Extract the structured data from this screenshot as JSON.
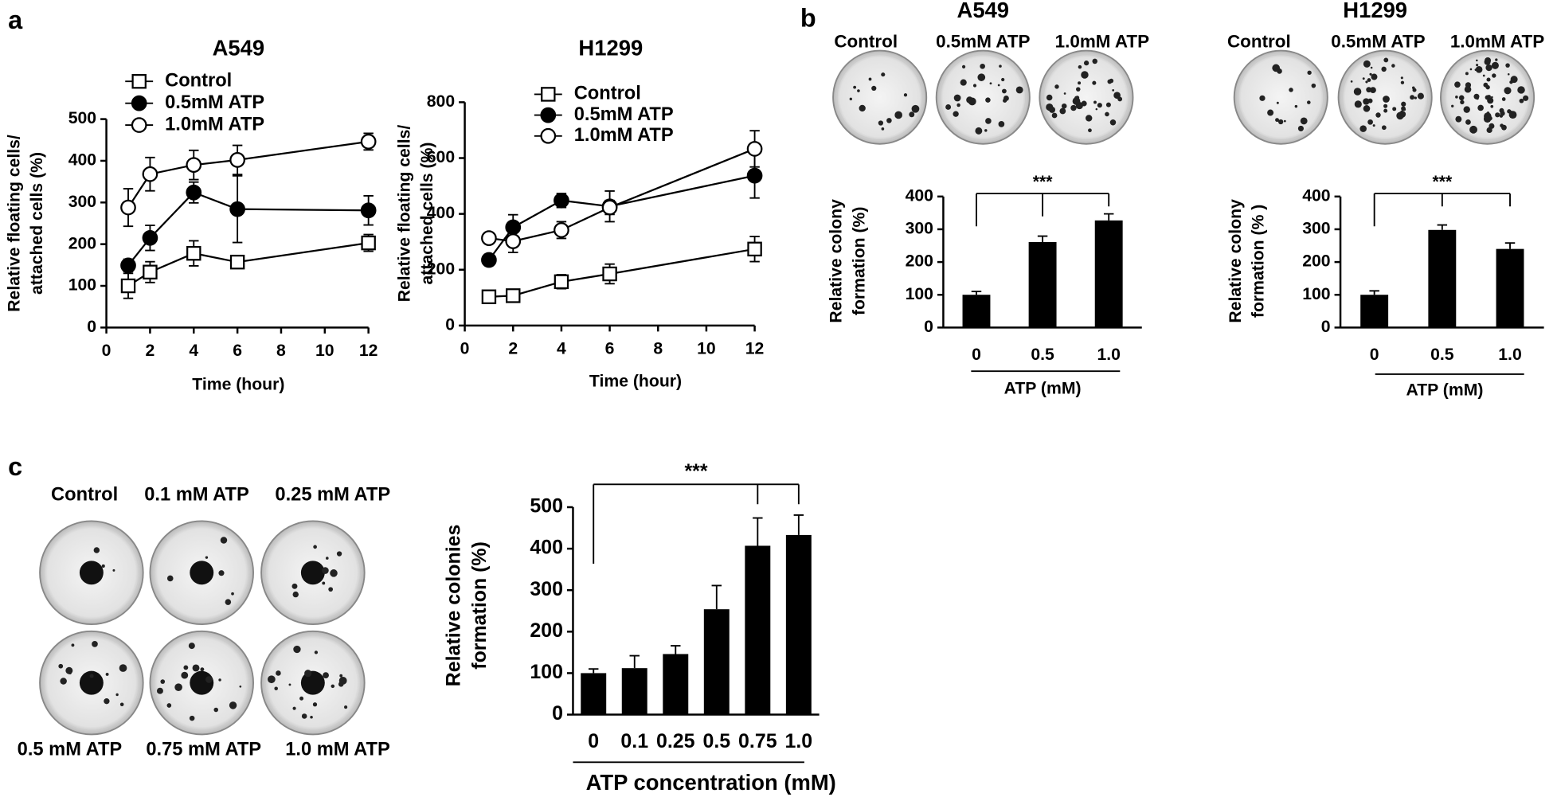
{
  "panel_labels": [
    "a",
    "b",
    "c"
  ],
  "chart_data": [
    {
      "type": "line",
      "title": "A549",
      "ylabel": [
        "Relative floating cells/",
        "attached cells (%)"
      ],
      "xlabel": "Time (hour)",
      "x": [
        1,
        2,
        4,
        6,
        12
      ],
      "xlim": [
        0,
        12
      ],
      "xticks": [
        0,
        2,
        4,
        6,
        8,
        10,
        12
      ],
      "ylim": [
        0,
        500
      ],
      "yticks": [
        0,
        100,
        200,
        300,
        400,
        500
      ],
      "series": [
        {
          "name": "Control",
          "color": "#000000",
          "marker": "square",
          "filled": false,
          "values": [
            100,
            133,
            178,
            157,
            203
          ],
          "errors": [
            30,
            25,
            30,
            12,
            20
          ]
        },
        {
          "name": "0.5mM ATP",
          "color": "#000000",
          "marker": "circle",
          "filled": true,
          "values": [
            149,
            215,
            324,
            284,
            281
          ],
          "errors": [
            15,
            30,
            25,
            80,
            35
          ]
        },
        {
          "name": "1.0mM ATP",
          "color": "#000000",
          "marker": "circle",
          "filled": false,
          "values": [
            288,
            368,
            390,
            402,
            446
          ],
          "errors": [
            45,
            40,
            35,
            35,
            20
          ]
        }
      ]
    },
    {
      "type": "line",
      "title": "H1299",
      "ylabel": [
        "Relative floating cells/",
        "attached cells (%)"
      ],
      "xlabel": "Time (hour)",
      "x": [
        1,
        2,
        4,
        6,
        12
      ],
      "xlim": [
        0,
        12
      ],
      "xticks": [
        0,
        2,
        4,
        6,
        8,
        10,
        12
      ],
      "ylim": [
        0,
        800
      ],
      "yticks": [
        0,
        200,
        400,
        600,
        800
      ],
      "series": [
        {
          "name": "Control",
          "color": "#000000",
          "marker": "square",
          "filled": false,
          "values": [
            103,
            107,
            157,
            185,
            274
          ],
          "errors": [
            20,
            20,
            25,
            35,
            45
          ]
        },
        {
          "name": "0.5mM ATP",
          "color": "#000000",
          "marker": "circle",
          "filled": true,
          "values": [
            235,
            352,
            448,
            427,
            537
          ],
          "errors": [
            20,
            45,
            25,
            55,
            80
          ]
        },
        {
          "name": "1.0mM ATP",
          "color": "#000000",
          "marker": "circle",
          "filled": false,
          "values": [
            313,
            302,
            342,
            423,
            633
          ],
          "errors": [
            0,
            40,
            30,
            25,
            65
          ]
        }
      ]
    },
    {
      "type": "bar",
      "title": "A549",
      "dish_labels": [
        "Control",
        "0.5mM ATP",
        "1.0mM ATP"
      ],
      "ylabel": [
        "Relative colony",
        "formation (%)"
      ],
      "xlabel": "ATP  (mM)",
      "categories": [
        "0",
        "0.5",
        "1.0"
      ],
      "values": [
        100,
        261,
        327
      ],
      "errors": [
        10,
        18,
        20
      ],
      "color": "#000000",
      "ylim": [
        0,
        400
      ],
      "yticks": [
        0,
        100,
        200,
        300,
        400
      ],
      "significance": "***"
    },
    {
      "type": "bar",
      "title": "H1299",
      "dish_labels": [
        "Control",
        "0.5mM ATP",
        "1.0mM ATP"
      ],
      "ylabel": [
        "Relative colony",
        "formation (% )"
      ],
      "xlabel": "ATP  (mM)",
      "categories": [
        "0",
        "0.5",
        "1.0"
      ],
      "values": [
        100,
        298,
        240
      ],
      "errors": [
        12,
        15,
        18
      ],
      "color": "#000000",
      "ylim": [
        0,
        400
      ],
      "yticks": [
        0,
        100,
        200,
        300,
        400
      ],
      "significance": "***"
    },
    {
      "type": "bar",
      "dish_labels": [
        "Control",
        "0.1 mM ATP",
        "0.25 mM ATP",
        "0.5 mM ATP",
        "0.75 mM ATP",
        "1.0 mM ATP"
      ],
      "ylabel": [
        "Relative colonies",
        "formation (%)"
      ],
      "xlabel": "ATP concentration (mM)",
      "categories": [
        "0",
        "0.1",
        "0.25",
        "0.5",
        "0.75",
        "1.0"
      ],
      "values": [
        100,
        112,
        146,
        254,
        407,
        433
      ],
      "errors": [
        10,
        30,
        20,
        57,
        67,
        48
      ],
      "color": "#000000",
      "ylim": [
        0,
        500
      ],
      "yticks": [
        0,
        100,
        200,
        300,
        400,
        500
      ],
      "significance": "***"
    }
  ]
}
